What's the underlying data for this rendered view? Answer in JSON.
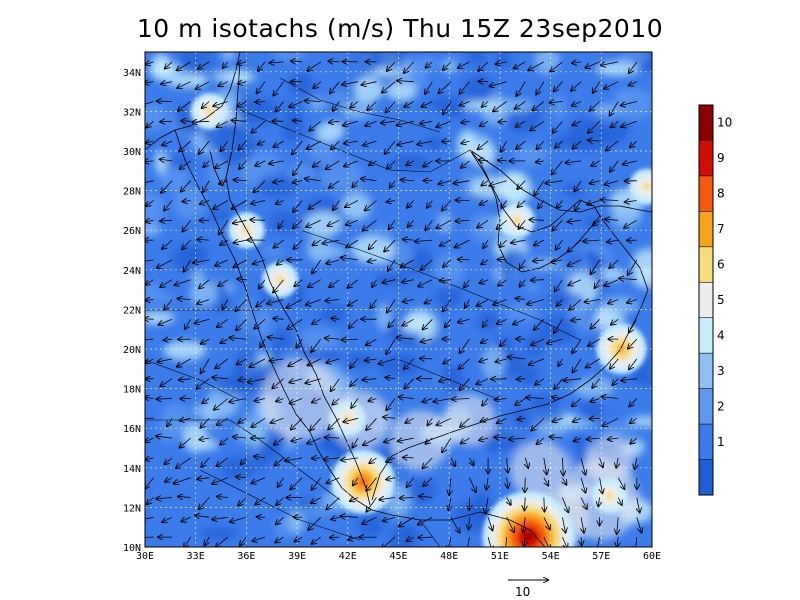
{
  "title": "10 m isotachs (m/s) Thu 15Z 23sep2010",
  "x_ticks": [
    "30E",
    "33E",
    "36E",
    "39E",
    "42E",
    "45E",
    "48E",
    "51E",
    "54E",
    "57E",
    "60E"
  ],
  "y_ticks": [
    "10N",
    "12N",
    "14N",
    "16N",
    "18N",
    "20N",
    "22N",
    "24N",
    "26N",
    "28N",
    "30N",
    "32N",
    "34N"
  ],
  "colorbar": {
    "labels": [
      "1",
      "2",
      "3",
      "4",
      "5",
      "6",
      "7",
      "8",
      "9",
      "10"
    ],
    "colors": [
      "#1f5fd6",
      "#3b7bea",
      "#5d97f0",
      "#8ebff5",
      "#c7ecfb",
      "#ececec",
      "#f7dc7c",
      "#f8a21c",
      "#f25a0f",
      "#d20d05",
      "#8c0000"
    ]
  },
  "reference_vector": {
    "label": "10"
  },
  "map": {
    "lon_range": [
      30,
      60
    ],
    "lat_range": [
      10,
      35
    ],
    "field_desc": "10 m wind speed isotachs over the Arabian Peninsula region with wind vectors",
    "hotspots": [
      {
        "lon": 52.7,
        "lat": 10.5,
        "level": 10
      },
      {
        "lon": 42.9,
        "lat": 13.3,
        "level": 8
      },
      {
        "lon": 58.2,
        "lat": 20.0,
        "level": 7
      },
      {
        "lon": 33.8,
        "lat": 32.0,
        "level": 6
      },
      {
        "lon": 36.0,
        "lat": 26.0,
        "level": 6
      },
      {
        "lon": 38.0,
        "lat": 23.5,
        "level": 6
      },
      {
        "lon": 59.7,
        "lat": 28.2,
        "level": 6
      },
      {
        "lon": 57.5,
        "lat": 12.6,
        "level": 6
      },
      {
        "lon": 42.0,
        "lat": 16.5,
        "level": 6
      },
      {
        "lon": 52.0,
        "lat": 26.5,
        "level": 6
      }
    ]
  }
}
